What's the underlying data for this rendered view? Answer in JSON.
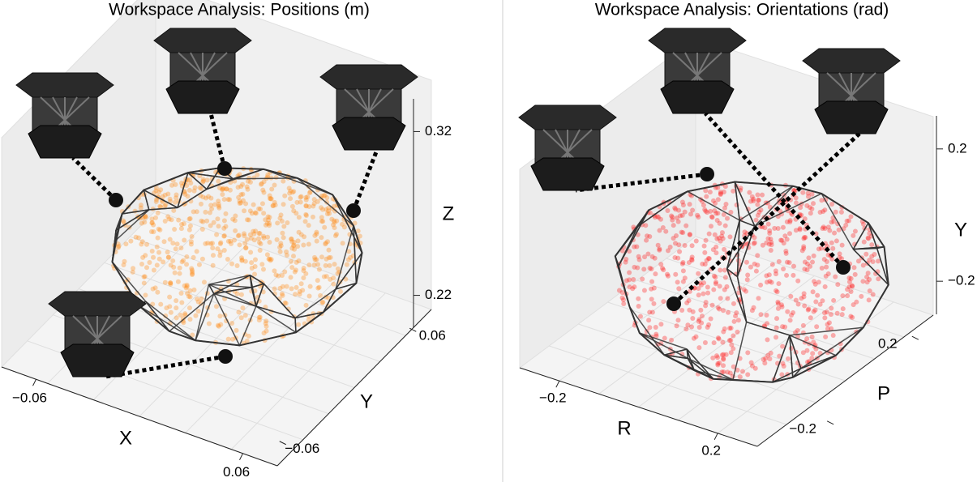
{
  "chart_data": [
    {
      "type": "hull3d",
      "title": "Workspace Analysis: Positions (m)",
      "color": "#ff8c1a",
      "xlabel": "X",
      "ylabel": "Y",
      "zlabel": "Z",
      "xlim": [
        -0.08,
        0.08
      ],
      "ylim": [
        -0.08,
        0.08
      ],
      "zlim": [
        0.2,
        0.34
      ],
      "xticks": [
        {
          "value": -0.06,
          "label": "−0.06"
        },
        0.06
      ],
      "yticks": [
        {
          "value": -0.06,
          "label": "−0.06"
        },
        0.06
      ],
      "zticks": [
        0.22,
        0.32
      ]
    },
    {
      "type": "hull3d",
      "title": "Workspace Analysis: Orientations (rad)",
      "color": "#ff2020",
      "xlabel": "R",
      "ylabel": "P",
      "zlabel": "Y",
      "xlim": [
        -0.3,
        0.3
      ],
      "ylim": [
        -0.3,
        0.3
      ],
      "zlim": [
        -0.3,
        0.3
      ],
      "xticks": [
        {
          "value": -0.2,
          "label": "−0.2"
        },
        0.2
      ],
      "yticks": [
        {
          "value": -0.2,
          "label": "−0.2"
        },
        0.2
      ],
      "zticks": [
        {
          "value": -0.2,
          "label": "−0.2"
        },
        0.2
      ]
    }
  ]
}
